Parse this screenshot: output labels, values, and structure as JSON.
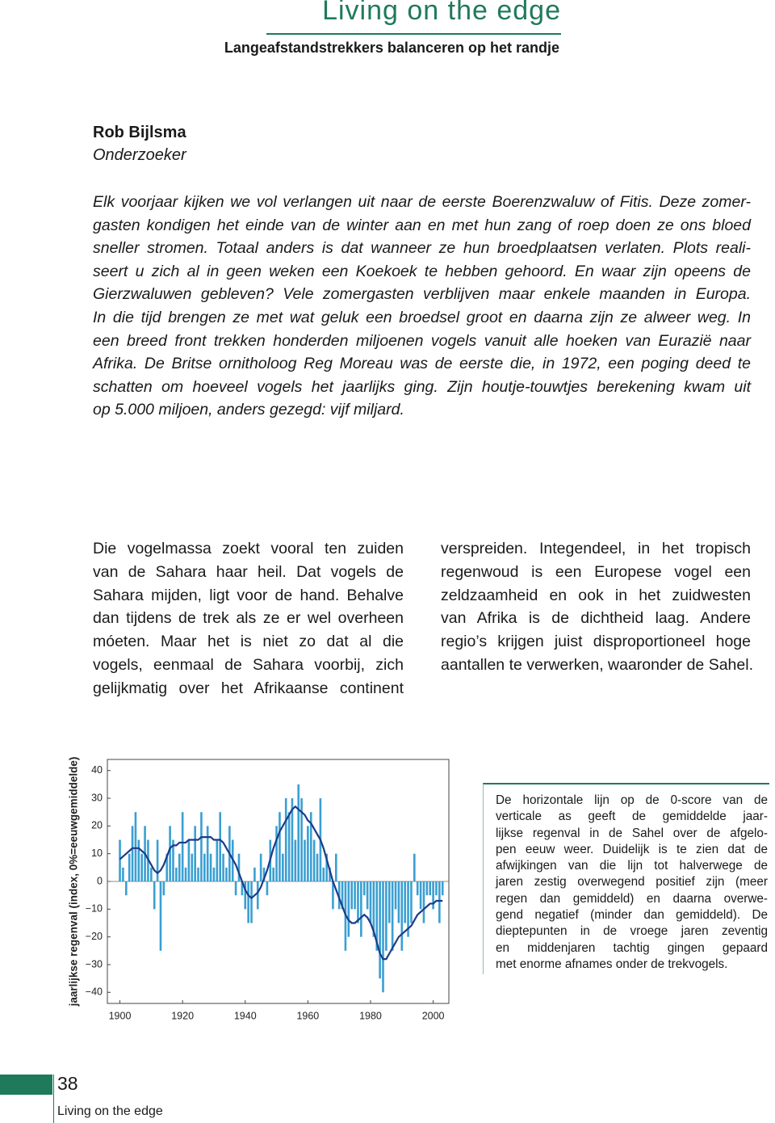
{
  "header": {
    "title": "Living on the edge",
    "subtitle": "Langeafstandstrekkers balanceren op het randje"
  },
  "author": {
    "name": "Rob Bijlsma",
    "role": "Onderzoeker"
  },
  "intro": [
    "Elk voorjaar kijken we vol verlangen uit naar de eerste Boerenzwaluw of Fitis. Deze zomer-",
    "gasten kondigen het einde van de winter aan en met hun zang of roep doen ze ons bloed",
    "sneller stromen. Totaal anders is dat wanneer ze hun broedplaatsen verlaten. Plots reali-",
    "seert u zich al in geen weken een Koekoek te hebben gehoord. En waar zijn opeens de",
    "Gierzwaluwen gebleven? Vele zomergasten verblijven maar enkele maanden in Europa.",
    "In die tijd brengen ze met wat geluk een broedsel groot en daarna zijn ze alweer weg. In",
    "een breed front trekken honderden miljoenen vogels vanuit alle hoeken van Eurazië naar",
    "Afrika. De Britse ornitholoog Reg Moreau was de eerste die, in 1972, een poging deed te",
    "schatten om hoeveel vogels het jaarlijks ging. Zijn houtje-touwtjes berekening kwam uit",
    "op 5.000 miljoen, anders gezegd: vijf miljard."
  ],
  "columns": [
    [
      "Die vogelmassa zoekt vooral ten zuiden",
      "van de Sahara haar heil. Dat vogels de",
      "Sahara mijden, ligt voor de hand. Behalve",
      "dan tijdens de trek als ze er wel overheen",
      "móeten. Maar het is niet zo dat al die",
      "vogels, eenmaal de Sahara voorbij, zich",
      "gelijkmatig over het Afrikaanse continent"
    ],
    [
      "verspreiden. Integendeel, in het tropisch",
      "regenwoud is een Europese vogel een",
      "zeldzaamheid en ook in het zuidwesten",
      "van Afrika is de dichtheid laag. Andere",
      "regio’s krijgen juist disproportioneel hoge",
      "aantallen te verwerken, waaronder de Sahel."
    ]
  ],
  "chart_data": {
    "type": "bar",
    "y_label": "jaarlijkse regenval (index, 0%=eeuwgemiddelde)",
    "x": [
      1900,
      1901,
      1902,
      1903,
      1904,
      1905,
      1906,
      1907,
      1908,
      1909,
      1910,
      1911,
      1912,
      1913,
      1914,
      1915,
      1916,
      1917,
      1918,
      1919,
      1920,
      1921,
      1922,
      1923,
      1924,
      1925,
      1926,
      1927,
      1928,
      1929,
      1930,
      1931,
      1932,
      1933,
      1934,
      1935,
      1936,
      1937,
      1938,
      1939,
      1940,
      1941,
      1942,
      1943,
      1944,
      1945,
      1946,
      1947,
      1948,
      1949,
      1950,
      1951,
      1952,
      1953,
      1954,
      1955,
      1956,
      1957,
      1958,
      1959,
      1960,
      1961,
      1962,
      1963,
      1964,
      1965,
      1966,
      1967,
      1968,
      1969,
      1970,
      1971,
      1972,
      1973,
      1974,
      1975,
      1976,
      1977,
      1978,
      1979,
      1980,
      1981,
      1982,
      1983,
      1984,
      1985,
      1986,
      1987,
      1988,
      1989,
      1990,
      1991,
      1992,
      1993,
      1994,
      1995,
      1996,
      1997,
      1998,
      1999,
      2000,
      2001,
      2002,
      2003
    ],
    "series": [
      {
        "type": "bar",
        "color": "#3a9fd2",
        "values": [
          15,
          5,
          -5,
          10,
          20,
          25,
          15,
          10,
          20,
          15,
          5,
          -10,
          15,
          -25,
          -5,
          10,
          20,
          15,
          5,
          10,
          25,
          5,
          15,
          10,
          20,
          5,
          25,
          10,
          20,
          10,
          5,
          15,
          25,
          10,
          5,
          20,
          15,
          -5,
          10,
          -5,
          -10,
          -15,
          -15,
          5,
          -10,
          10,
          5,
          -5,
          15,
          5,
          20,
          25,
          10,
          30,
          25,
          30,
          15,
          35,
          30,
          15,
          20,
          25,
          15,
          10,
          30,
          5,
          10,
          5,
          -10,
          10,
          -10,
          -10,
          -25,
          -20,
          -10,
          -10,
          -15,
          -20,
          -5,
          -10,
          -15,
          -20,
          -25,
          -35,
          -40,
          -25,
          -15,
          -25,
          -10,
          -15,
          -25,
          -15,
          -20,
          -15,
          10,
          -5,
          -10,
          -15,
          -5,
          -5,
          -10,
          -5,
          -15,
          -5
        ]
      },
      {
        "type": "line",
        "color": "#1d3a87",
        "values": [
          8,
          9,
          10,
          11,
          12,
          12,
          12,
          11,
          10,
          8,
          6,
          4,
          3,
          4,
          6,
          9,
          12,
          13,
          13,
          14,
          14,
          14,
          15,
          15,
          15,
          15,
          16,
          16,
          16,
          16,
          15,
          15,
          15,
          14,
          12,
          10,
          8,
          6,
          3,
          0,
          -3,
          -5,
          -6,
          -5,
          -4,
          -2,
          1,
          4,
          8,
          12,
          15,
          18,
          20,
          22,
          24,
          26,
          27,
          26,
          25,
          24,
          22,
          21,
          19,
          17,
          15,
          12,
          8,
          4,
          0,
          -3,
          -6,
          -9,
          -12,
          -14,
          -15,
          -15,
          -14,
          -13,
          -12,
          -13,
          -15,
          -18,
          -22,
          -26,
          -28,
          -28,
          -26,
          -24,
          -22,
          -20,
          -19,
          -18,
          -17,
          -16,
          -14,
          -12,
          -11,
          -10,
          -9,
          -8,
          -8,
          -7,
          -7,
          -7
        ]
      }
    ],
    "xlim": [
      1896,
      2005
    ],
    "xticks": [
      1900,
      1920,
      1940,
      1960,
      1980,
      2000
    ],
    "ylim": [
      -44,
      44
    ],
    "yticks": [
      {
        "value": -40,
        "label": "−40"
      },
      {
        "value": -30,
        "label": "−30"
      },
      {
        "value": -20,
        "label": "−20"
      },
      {
        "value": -10,
        "label": "−10"
      },
      0,
      10,
      20,
      30,
      40
    ],
    "grid": false
  },
  "caption": [
    "De horizontale lijn op de 0-score van de",
    "verticale as geeft de gemiddelde jaar-",
    "lijkse regenval in de Sahel over de afgelo-",
    "pen eeuw weer. Duidelijk is te zien dat de",
    "afwijkingen van die lijn tot halverwege de",
    "jaren zestig overwegend positief zijn (meer",
    "regen dan gemiddeld) en daarna overwe-",
    "gend negatief (minder dan gemiddeld). De",
    "dieptepunten in de vroege jaren zeventig",
    "en middenjaren tachtig gingen gepaard",
    "met enorme afnames onder de trekvogels."
  ],
  "footer": {
    "page": 38,
    "label": "Living on the edge"
  }
}
